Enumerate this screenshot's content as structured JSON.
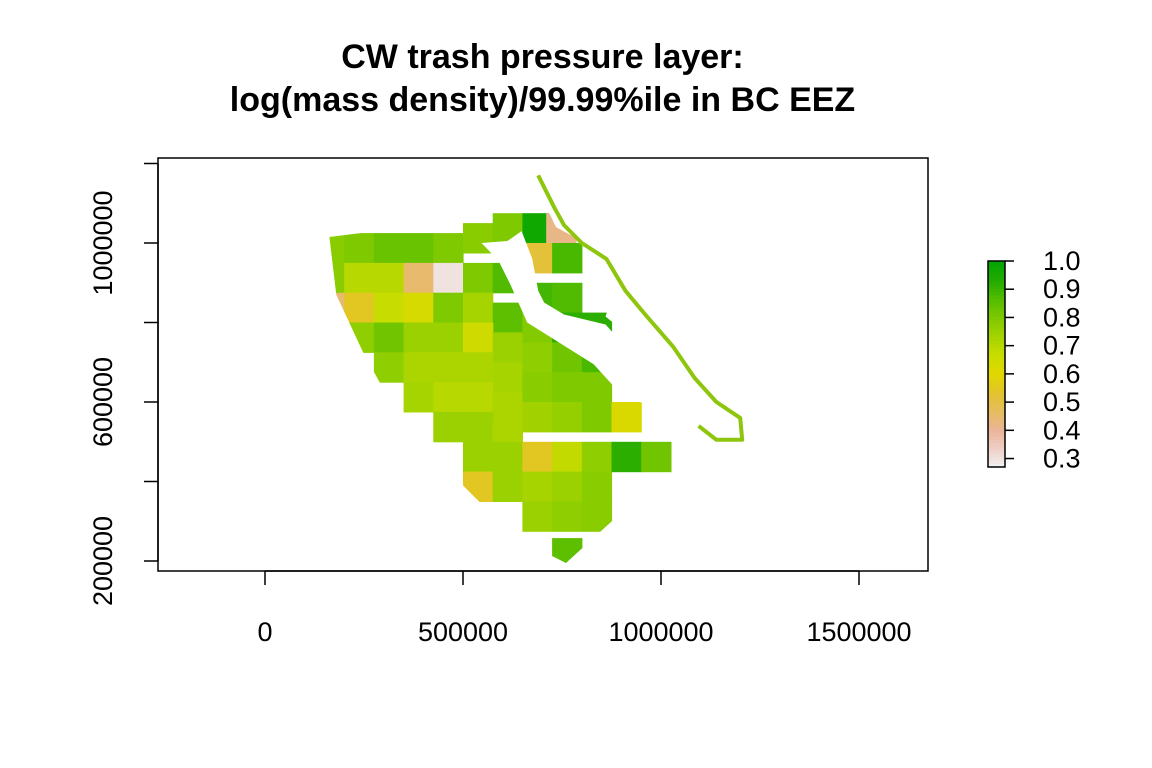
{
  "title": {
    "line1": "CW trash pressure layer:",
    "line2": "log(mass density)/99.99%ile in BC EEZ"
  },
  "chart_data": {
    "type": "raster-map",
    "title": "CW trash pressure layer: log(mass density)/99.99%ile in BC EEZ",
    "x_axis": {
      "range": [
        -275000,
        1675000
      ],
      "ticks": [
        0,
        500000,
        1000000,
        1500000
      ],
      "tick_labels": [
        "0",
        "500000",
        "1000000",
        "1500000"
      ]
    },
    "y_axis": {
      "range": [
        185000,
        1230000
      ],
      "ticks": [
        200000,
        400000,
        600000,
        800000,
        1000000,
        1200000
      ],
      "tick_labels": [
        "200000",
        "",
        "600000",
        "",
        "1000000",
        ""
      ]
    },
    "legend": {
      "position": "right",
      "range": [
        0.27,
        1.0
      ],
      "ticks": [
        1.0,
        0.9,
        0.8,
        0.7,
        0.6,
        0.5,
        0.4,
        0.3
      ],
      "tick_labels": [
        "1.0",
        "0.9",
        "0.8",
        "0.7",
        "0.6",
        "0.5",
        "0.4",
        "0.3"
      ],
      "colors": [
        "#f2f2f2",
        "#eecfc7",
        "#ebb497",
        "#e5bd5e",
        "#e3c22c",
        "#e0d800",
        "#c8dc00",
        "#a4d300",
        "#7dc900",
        "#52bc00",
        "#22aa00",
        "#00a600"
      ]
    },
    "grid_cell_size": 75000,
    "cells": [
      {
        "x": 162500,
        "y": 987500,
        "v": 0.78
      },
      {
        "x": 237500,
        "y": 987500,
        "v": 0.8
      },
      {
        "x": 312500,
        "y": 987500,
        "v": 0.83
      },
      {
        "x": 387500,
        "y": 987500,
        "v": 0.83
      },
      {
        "x": 462500,
        "y": 987500,
        "v": 0.8
      },
      {
        "x": 537500,
        "y": 1012500,
        "v": 0.78
      },
      {
        "x": 612500,
        "y": 1037500,
        "v": 0.8
      },
      {
        "x": 687500,
        "y": 1037500,
        "v": 0.97
      },
      {
        "x": 747500,
        "y": 1037500,
        "v": 0.42
      },
      {
        "x": 162500,
        "y": 912500,
        "v": 0.78
      },
      {
        "x": 237500,
        "y": 912500,
        "v": 0.7
      },
      {
        "x": 312500,
        "y": 912500,
        "v": 0.7
      },
      {
        "x": 387500,
        "y": 912500,
        "v": 0.45
      },
      {
        "x": 462500,
        "y": 912500,
        "v": 0.3
      },
      {
        "x": 537500,
        "y": 912500,
        "v": 0.8
      },
      {
        "x": 612500,
        "y": 912500,
        "v": 0.87
      },
      {
        "x": 687500,
        "y": 962500,
        "v": 0.52
      },
      {
        "x": 762500,
        "y": 962500,
        "v": 0.88
      },
      {
        "x": 162500,
        "y": 837500,
        "v": 0.45
      },
      {
        "x": 237500,
        "y": 837500,
        "v": 0.55
      },
      {
        "x": 312500,
        "y": 837500,
        "v": 0.67
      },
      {
        "x": 387500,
        "y": 837500,
        "v": 0.63
      },
      {
        "x": 462500,
        "y": 837500,
        "v": 0.8
      },
      {
        "x": 537500,
        "y": 837500,
        "v": 0.73
      },
      {
        "x": 612500,
        "y": 812500,
        "v": 0.85
      },
      {
        "x": 687500,
        "y": 862500,
        "v": 0.89
      },
      {
        "x": 762500,
        "y": 862500,
        "v": 0.87
      },
      {
        "x": 237500,
        "y": 762500,
        "v": 0.77
      },
      {
        "x": 312500,
        "y": 762500,
        "v": 0.82
      },
      {
        "x": 387500,
        "y": 762500,
        "v": 0.75
      },
      {
        "x": 462500,
        "y": 762500,
        "v": 0.75
      },
      {
        "x": 537500,
        "y": 762500,
        "v": 0.65
      },
      {
        "x": 612500,
        "y": 737500,
        "v": 0.75
      },
      {
        "x": 687500,
        "y": 787500,
        "v": 0.79
      },
      {
        "x": 762500,
        "y": 787500,
        "v": 0.92
      },
      {
        "x": 837500,
        "y": 787500,
        "v": 0.92
      },
      {
        "x": 312500,
        "y": 687500,
        "v": 0.77
      },
      {
        "x": 387500,
        "y": 687500,
        "v": 0.72
      },
      {
        "x": 462500,
        "y": 687500,
        "v": 0.72
      },
      {
        "x": 537500,
        "y": 687500,
        "v": 0.72
      },
      {
        "x": 612500,
        "y": 662500,
        "v": 0.73
      },
      {
        "x": 687500,
        "y": 712500,
        "v": 0.77
      },
      {
        "x": 762500,
        "y": 712500,
        "v": 0.82
      },
      {
        "x": 837500,
        "y": 712500,
        "v": 0.88
      },
      {
        "x": 387500,
        "y": 612500,
        "v": 0.73
      },
      {
        "x": 462500,
        "y": 612500,
        "v": 0.7
      },
      {
        "x": 537500,
        "y": 612500,
        "v": 0.7
      },
      {
        "x": 612500,
        "y": 587500,
        "v": 0.72
      },
      {
        "x": 687500,
        "y": 637500,
        "v": 0.78
      },
      {
        "x": 762500,
        "y": 637500,
        "v": 0.8
      },
      {
        "x": 837500,
        "y": 637500,
        "v": 0.8
      },
      {
        "x": 462500,
        "y": 537500,
        "v": 0.75
      },
      {
        "x": 537500,
        "y": 537500,
        "v": 0.75
      },
      {
        "x": 612500,
        "y": 512500,
        "v": 0.72
      },
      {
        "x": 687500,
        "y": 562500,
        "v": 0.74
      },
      {
        "x": 762500,
        "y": 562500,
        "v": 0.76
      },
      {
        "x": 837500,
        "y": 562500,
        "v": 0.8
      },
      {
        "x": 912500,
        "y": 562500,
        "v": 0.62
      },
      {
        "x": 537500,
        "y": 462500,
        "v": 0.75
      },
      {
        "x": 612500,
        "y": 462500,
        "v": 0.75
      },
      {
        "x": 687500,
        "y": 462500,
        "v": 0.55
      },
      {
        "x": 762500,
        "y": 462500,
        "v": 0.68
      },
      {
        "x": 837500,
        "y": 462500,
        "v": 0.77
      },
      {
        "x": 912500,
        "y": 462500,
        "v": 0.92
      },
      {
        "x": 987500,
        "y": 462500,
        "v": 0.82
      },
      {
        "x": 537500,
        "y": 387500,
        "v": 0.55
      },
      {
        "x": 612500,
        "y": 387500,
        "v": 0.75
      },
      {
        "x": 687500,
        "y": 387500,
        "v": 0.73
      },
      {
        "x": 762500,
        "y": 387500,
        "v": 0.75
      },
      {
        "x": 837500,
        "y": 387500,
        "v": 0.78
      },
      {
        "x": 687500,
        "y": 312500,
        "v": 0.75
      },
      {
        "x": 762500,
        "y": 312500,
        "v": 0.77
      },
      {
        "x": 837500,
        "y": 312500,
        "v": 0.78
      },
      {
        "x": 762500,
        "y": 220000,
        "v": 0.85
      }
    ],
    "region_outline": [
      [
        162500,
        1015000
      ],
      [
        320000,
        1035000
      ],
      [
        455000,
        1055000
      ],
      [
        560000,
        1085000
      ],
      [
        712000,
        1085000
      ],
      [
        735000,
        1040000
      ],
      [
        790000,
        1010000
      ],
      [
        880000,
        962000
      ],
      [
        880000,
        880000
      ],
      [
        860000,
        815000
      ],
      [
        945000,
        745000
      ],
      [
        1030000,
        620000
      ],
      [
        1095000,
        540000
      ],
      [
        1200000,
        505000
      ],
      [
        1088000,
        440000
      ],
      [
        980000,
        380000
      ],
      [
        900000,
        322000
      ],
      [
        760000,
        195000
      ],
      [
        670000,
        240000
      ],
      [
        560000,
        330000
      ],
      [
        450000,
        440000
      ],
      [
        340000,
        560000
      ],
      [
        250000,
        720000
      ],
      [
        180000,
        870000
      ]
    ],
    "land_outline": [
      [
        547000,
        1000000
      ],
      [
        612000,
        1005000
      ],
      [
        648000,
        1030000
      ],
      [
        675000,
        960000
      ],
      [
        690000,
        880000
      ],
      [
        705000,
        850000
      ],
      [
        755000,
        820000
      ],
      [
        860000,
        795000
      ],
      [
        905000,
        745000
      ],
      [
        970000,
        690000
      ],
      [
        1015000,
        640000
      ],
      [
        1040000,
        595000
      ],
      [
        1000000,
        560000
      ],
      [
        965000,
        590000
      ],
      [
        880000,
        640000
      ],
      [
        830000,
        695000
      ],
      [
        750000,
        745000
      ],
      [
        662000,
        800000
      ],
      [
        620000,
        895000
      ],
      [
        590000,
        955000
      ]
    ],
    "mainland_coast": [
      [
        690000,
        1170000
      ],
      [
        730000,
        1090000
      ],
      [
        755000,
        1045000
      ],
      [
        800000,
        1000000
      ],
      [
        862000,
        960000
      ],
      [
        910000,
        880000
      ],
      [
        960000,
        820000
      ],
      [
        1030000,
        740000
      ],
      [
        1085000,
        660000
      ],
      [
        1140000,
        600000
      ],
      [
        1200000,
        560000
      ],
      [
        1205000,
        505000
      ],
      [
        1140000,
        505000
      ],
      [
        1095000,
        540000
      ]
    ]
  }
}
